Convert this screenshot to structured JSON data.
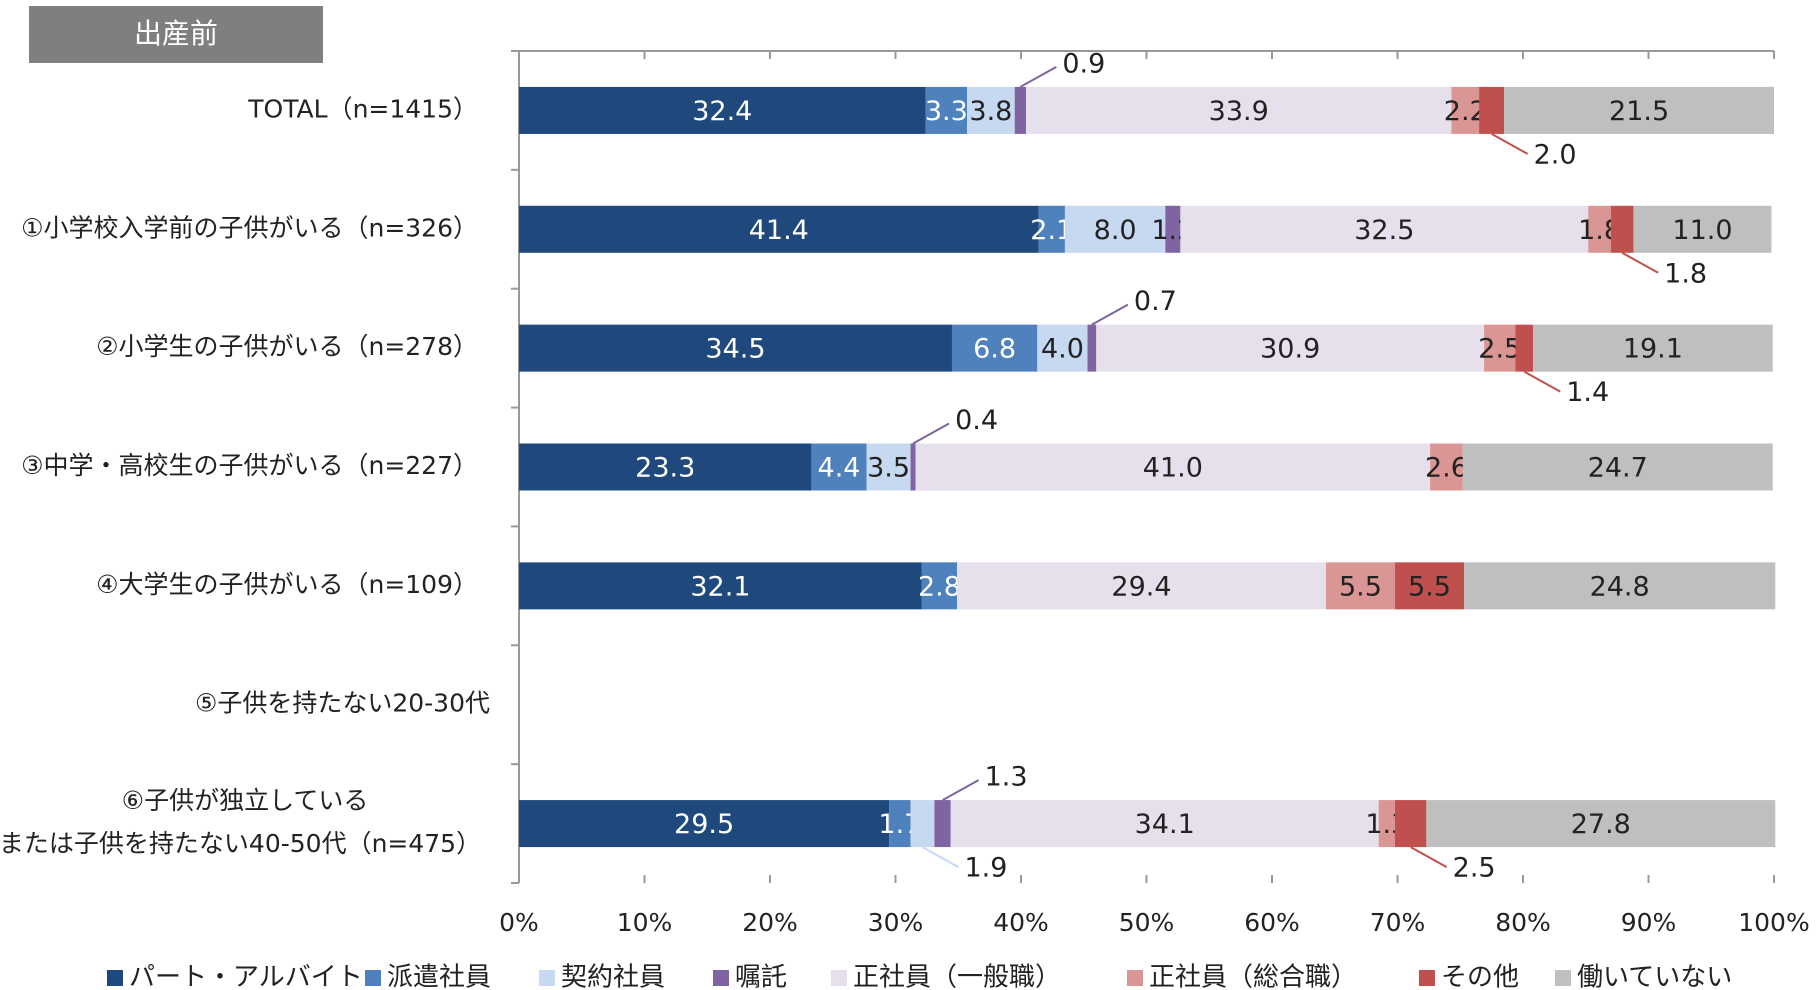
{
  "chart_data": {
    "type": "stacked-bar-horizontal",
    "title": "出産前",
    "categories": [
      "TOTAL（n=1415）",
      "①小学校入学前の子供がいる（n=326）",
      "②小学生の子供がいる（n=278）",
      "③中学・高校生の子供がいる（n=227）",
      "④大学生の子供がいる（n=109）",
      "⑤子供を持たない20-30代",
      "⑥子供が独立している\nまたは子供を持たない40-50代（n=475）"
    ],
    "series": [
      {
        "name": "パート・アルバイト",
        "color": "#1f497d",
        "values": [
          32.4,
          41.4,
          34.5,
          23.3,
          32.1,
          null,
          29.5
        ]
      },
      {
        "name": "派遣社員",
        "color": "#4f81bd",
        "values": [
          3.3,
          2.1,
          6.8,
          4.4,
          2.8,
          null,
          1.7
        ]
      },
      {
        "name": "契約社員",
        "color": "#c6d9f1",
        "values": [
          3.8,
          8.0,
          4.0,
          3.5,
          null,
          null,
          1.9
        ]
      },
      {
        "name": "嘱託",
        "color": "#8064a2",
        "values": [
          0.9,
          1.2,
          0.7,
          0.4,
          null,
          null,
          1.3
        ]
      },
      {
        "name": "正社員（一般職）",
        "color": "#e6e0ec",
        "values": [
          33.9,
          32.5,
          30.9,
          41.0,
          29.4,
          null,
          34.1
        ]
      },
      {
        "name": "正社員（総合職）",
        "color": "#d99694",
        "values": [
          2.2,
          1.8,
          2.5,
          2.6,
          5.5,
          null,
          1.3
        ]
      },
      {
        "name": "その他",
        "color": "#c0504d",
        "values": [
          2.0,
          1.8,
          1.4,
          null,
          5.5,
          null,
          2.5
        ]
      },
      {
        "name": "働いていない",
        "color": "#bfbfbf",
        "values": [
          21.5,
          11.0,
          19.1,
          24.7,
          24.8,
          null,
          27.8
        ]
      }
    ],
    "value_labels": [
      [
        "32.4",
        "41.4",
        "34.5",
        "23.3",
        "32.1",
        null,
        "29.5"
      ],
      [
        "3.3",
        "2.1",
        "6.8",
        "4.4",
        "2.8",
        null,
        "1.7"
      ],
      [
        "3.8",
        "8.0",
        "4.0",
        "3.5",
        null,
        null,
        "1.9"
      ],
      [
        "0.9",
        "1.2",
        "0.7",
        "0.4",
        null,
        null,
        "1.3"
      ],
      [
        "33.9",
        "32.5",
        "30.9",
        "41.0",
        "29.4",
        null,
        "34.1"
      ],
      [
        "2.2",
        "1.8",
        "2.5",
        "2.6",
        "5.5",
        null,
        "1.3"
      ],
      [
        "2.0",
        "1.8",
        "1.4",
        null,
        "5.5",
        null,
        "2.5"
      ],
      [
        "21.5",
        "11.0",
        "19.1",
        "24.7",
        "24.8",
        null,
        "27.8"
      ]
    ],
    "xlim": [
      0,
      100
    ],
    "xticks": [
      {
        "value": 0,
        "label": "0%"
      },
      {
        "value": 10,
        "label": "10%"
      },
      {
        "value": 20,
        "label": "20%"
      },
      {
        "value": 30,
        "label": "30%"
      },
      {
        "value": 40,
        "label": "40%"
      },
      {
        "value": 50,
        "label": "50%"
      },
      {
        "value": 60,
        "label": "60%"
      },
      {
        "value": 70,
        "label": "70%"
      },
      {
        "value": 80,
        "label": "80%"
      },
      {
        "value": 90,
        "label": "90%"
      },
      {
        "value": 100,
        "label": "100%"
      }
    ],
    "legend": "bottom"
  }
}
